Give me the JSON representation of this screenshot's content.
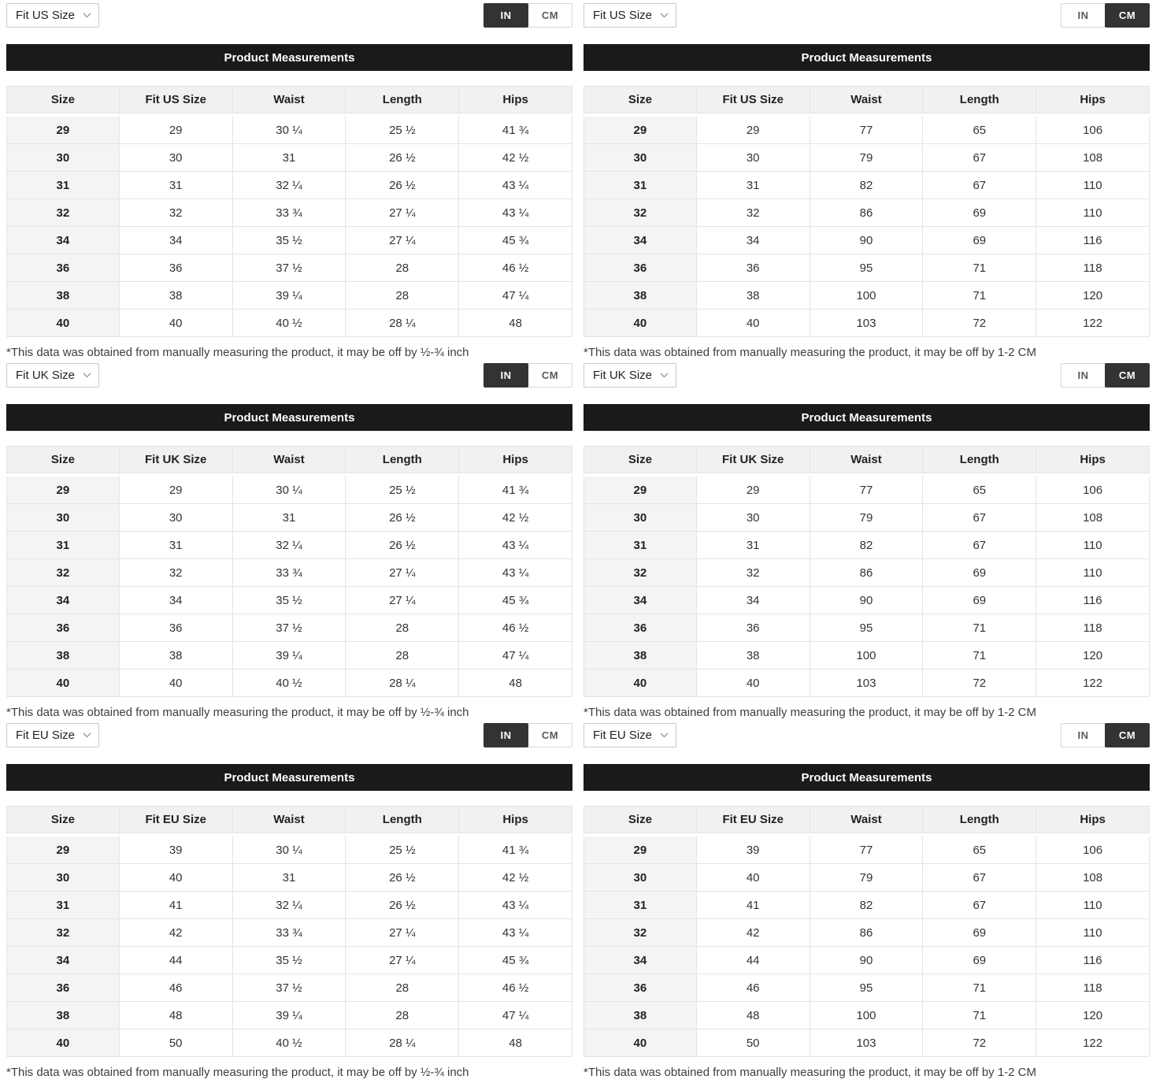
{
  "title_bar_label": "Product Measurements",
  "panels": [
    {
      "dropdown_label": "Fit US Size",
      "units": [
        "IN",
        "CM"
      ],
      "active_unit": "IN",
      "title": "Product Measurements",
      "columns": [
        "Size",
        "Fit US Size",
        "Waist",
        "Length",
        "Hips"
      ],
      "rows": [
        [
          "29",
          "29",
          "30 ¼",
          "25 ½",
          "41 ¾"
        ],
        [
          "30",
          "30",
          "31",
          "26 ½",
          "42 ½"
        ],
        [
          "31",
          "31",
          "32 ¼",
          "26 ½",
          "43 ¼"
        ],
        [
          "32",
          "32",
          "33 ¾",
          "27 ¼",
          "43 ¼"
        ],
        [
          "34",
          "34",
          "35 ½",
          "27 ¼",
          "45 ¾"
        ],
        [
          "36",
          "36",
          "37 ½",
          "28",
          "46 ½"
        ],
        [
          "38",
          "38",
          "39 ¼",
          "28",
          "47 ¼"
        ],
        [
          "40",
          "40",
          "40 ½",
          "28 ¼",
          "48"
        ]
      ],
      "footnote": "*This data was obtained from manually measuring the product, it may be off by ½-¾ inch"
    },
    {
      "dropdown_label": "Fit US Size",
      "units": [
        "IN",
        "CM"
      ],
      "active_unit": "CM",
      "title": "Product Measurements",
      "columns": [
        "Size",
        "Fit US Size",
        "Waist",
        "Length",
        "Hips"
      ],
      "rows": [
        [
          "29",
          "29",
          "77",
          "65",
          "106"
        ],
        [
          "30",
          "30",
          "79",
          "67",
          "108"
        ],
        [
          "31",
          "31",
          "82",
          "67",
          "110"
        ],
        [
          "32",
          "32",
          "86",
          "69",
          "110"
        ],
        [
          "34",
          "34",
          "90",
          "69",
          "116"
        ],
        [
          "36",
          "36",
          "95",
          "71",
          "118"
        ],
        [
          "38",
          "38",
          "100",
          "71",
          "120"
        ],
        [
          "40",
          "40",
          "103",
          "72",
          "122"
        ]
      ],
      "footnote": "*This data was obtained from manually measuring the product, it may be off by 1-2 CM"
    },
    {
      "dropdown_label": "Fit UK Size",
      "units": [
        "IN",
        "CM"
      ],
      "active_unit": "IN",
      "title": "Product Measurements",
      "columns": [
        "Size",
        "Fit UK Size",
        "Waist",
        "Length",
        "Hips"
      ],
      "rows": [
        [
          "29",
          "29",
          "30 ¼",
          "25 ½",
          "41 ¾"
        ],
        [
          "30",
          "30",
          "31",
          "26 ½",
          "42 ½"
        ],
        [
          "31",
          "31",
          "32 ¼",
          "26 ½",
          "43 ¼"
        ],
        [
          "32",
          "32",
          "33 ¾",
          "27 ¼",
          "43 ¼"
        ],
        [
          "34",
          "34",
          "35 ½",
          "27 ¼",
          "45 ¾"
        ],
        [
          "36",
          "36",
          "37 ½",
          "28",
          "46 ½"
        ],
        [
          "38",
          "38",
          "39 ¼",
          "28",
          "47 ¼"
        ],
        [
          "40",
          "40",
          "40 ½",
          "28 ¼",
          "48"
        ]
      ],
      "footnote": "*This data was obtained from manually measuring the product, it may be off by ½-¾ inch"
    },
    {
      "dropdown_label": "Fit UK Size",
      "units": [
        "IN",
        "CM"
      ],
      "active_unit": "CM",
      "title": "Product Measurements",
      "columns": [
        "Size",
        "Fit UK Size",
        "Waist",
        "Length",
        "Hips"
      ],
      "rows": [
        [
          "29",
          "29",
          "77",
          "65",
          "106"
        ],
        [
          "30",
          "30",
          "79",
          "67",
          "108"
        ],
        [
          "31",
          "31",
          "82",
          "67",
          "110"
        ],
        [
          "32",
          "32",
          "86",
          "69",
          "110"
        ],
        [
          "34",
          "34",
          "90",
          "69",
          "116"
        ],
        [
          "36",
          "36",
          "95",
          "71",
          "118"
        ],
        [
          "38",
          "38",
          "100",
          "71",
          "120"
        ],
        [
          "40",
          "40",
          "103",
          "72",
          "122"
        ]
      ],
      "footnote": "*This data was obtained from manually measuring the product, it may be off by 1-2 CM"
    },
    {
      "dropdown_label": "Fit EU Size",
      "units": [
        "IN",
        "CM"
      ],
      "active_unit": "IN",
      "title": "Product Measurements",
      "columns": [
        "Size",
        "Fit EU Size",
        "Waist",
        "Length",
        "Hips"
      ],
      "rows": [
        [
          "29",
          "39",
          "30 ¼",
          "25 ½",
          "41 ¾"
        ],
        [
          "30",
          "40",
          "31",
          "26 ½",
          "42 ½"
        ],
        [
          "31",
          "41",
          "32 ¼",
          "26 ½",
          "43 ¼"
        ],
        [
          "32",
          "42",
          "33 ¾",
          "27 ¼",
          "43 ¼"
        ],
        [
          "34",
          "44",
          "35 ½",
          "27 ¼",
          "45 ¾"
        ],
        [
          "36",
          "46",
          "37 ½",
          "28",
          "46 ½"
        ],
        [
          "38",
          "48",
          "39 ¼",
          "28",
          "47 ¼"
        ],
        [
          "40",
          "50",
          "40 ½",
          "28 ¼",
          "48"
        ]
      ],
      "footnote": "*This data was obtained from manually measuring the product, it may be off by ½-¾ inch"
    },
    {
      "dropdown_label": "Fit EU Size",
      "units": [
        "IN",
        "CM"
      ],
      "active_unit": "CM",
      "title": "Product Measurements",
      "columns": [
        "Size",
        "Fit EU Size",
        "Waist",
        "Length",
        "Hips"
      ],
      "rows": [
        [
          "29",
          "39",
          "77",
          "65",
          "106"
        ],
        [
          "30",
          "40",
          "79",
          "67",
          "108"
        ],
        [
          "31",
          "41",
          "82",
          "67",
          "110"
        ],
        [
          "32",
          "42",
          "86",
          "69",
          "110"
        ],
        [
          "34",
          "44",
          "90",
          "69",
          "116"
        ],
        [
          "36",
          "46",
          "95",
          "71",
          "118"
        ],
        [
          "38",
          "48",
          "100",
          "71",
          "120"
        ],
        [
          "40",
          "50",
          "103",
          "72",
          "122"
        ]
      ],
      "footnote": "*This data was obtained from manually measuring the product, it may be off by 1-2 CM"
    }
  ]
}
